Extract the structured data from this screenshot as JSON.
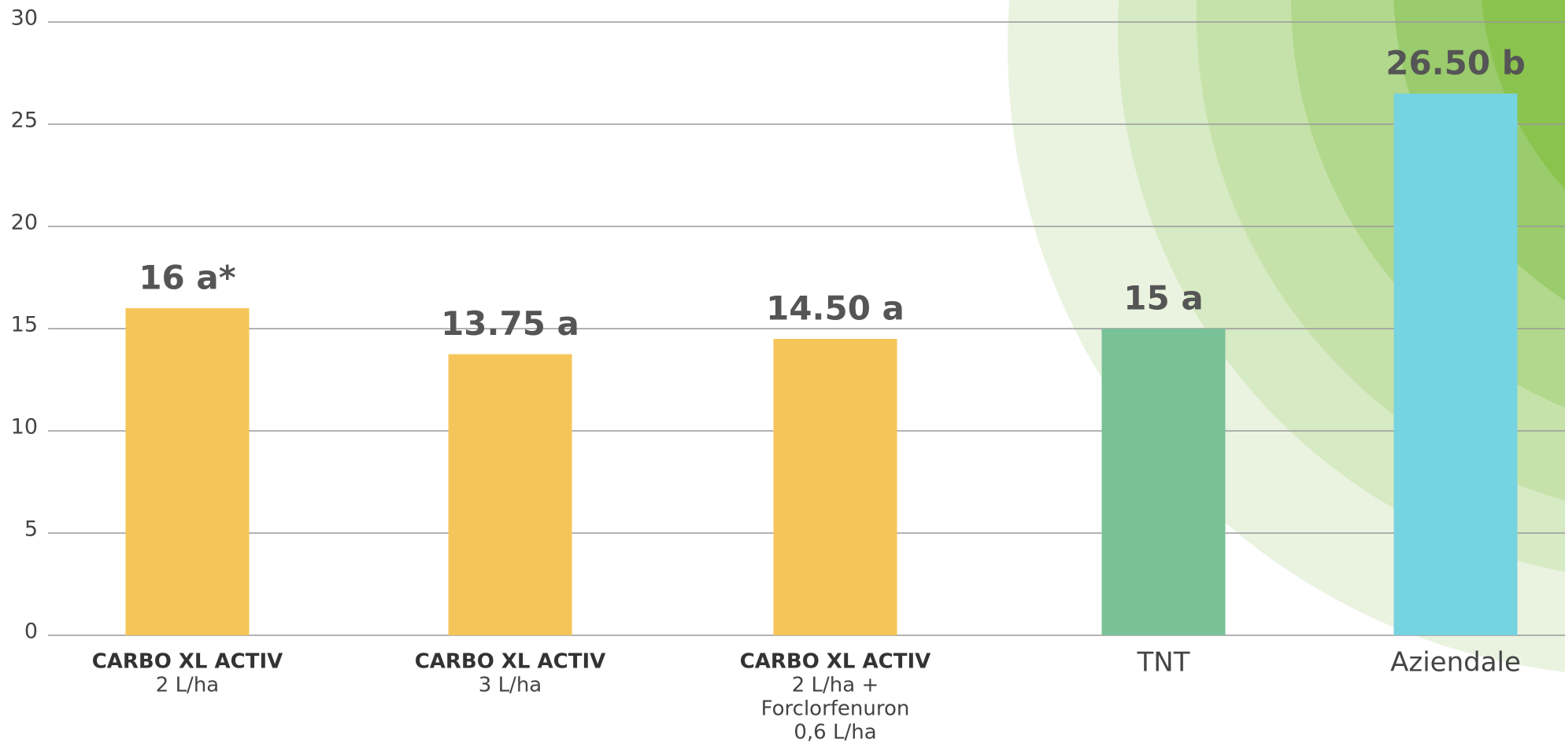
{
  "chart_data": {
    "type": "bar",
    "categories": [
      {
        "name": "CARBO XL ACTIV",
        "detail": [
          "2 L/ha"
        ]
      },
      {
        "name": "CARBO XL ACTIV",
        "detail": [
          "3 L/ha"
        ]
      },
      {
        "name": "CARBO XL ACTIV",
        "detail": [
          "2 L/ha +",
          "Forclorfenuron",
          "0,6 L/ha"
        ]
      },
      {
        "name": "TNT"
      },
      {
        "name": "Aziendale"
      }
    ],
    "values": [
      16,
      13.75,
      14.5,
      15,
      26.5
    ],
    "value_labels": [
      "16 a*",
      "13.75 a",
      "14.50 a",
      "15 a",
      "26.50 b"
    ],
    "colors": [
      "#f6c55a",
      "#f6c55a",
      "#f6c55a",
      "#79c197",
      "#76d3e0"
    ],
    "ylim": [
      0,
      30
    ],
    "yticks": [
      0,
      5,
      10,
      15,
      20,
      25,
      30
    ],
    "grid": true
  }
}
